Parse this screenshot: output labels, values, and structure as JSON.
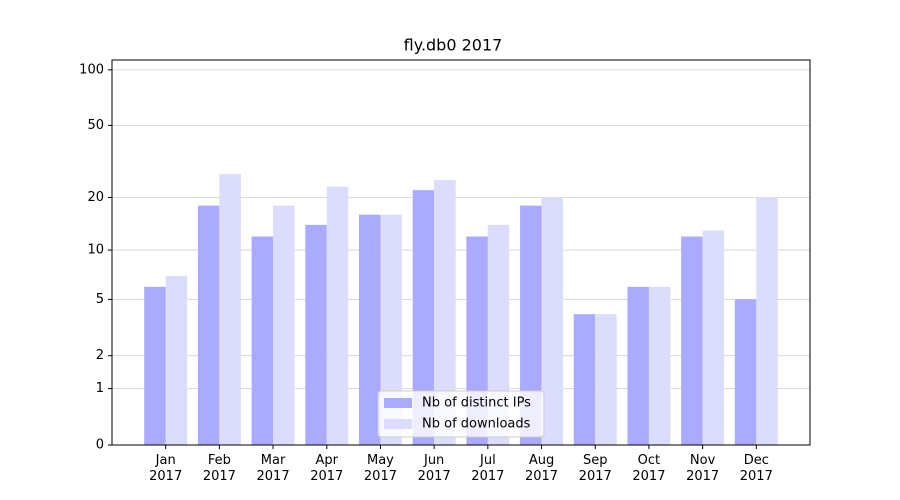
{
  "chart_data": {
    "type": "bar",
    "title": "fly.db0 2017",
    "categories": [
      "Jan\n2017",
      "Feb\n2017",
      "Mar\n2017",
      "Apr\n2017",
      "May\n2017",
      "Jun\n2017",
      "Jul\n2017",
      "Aug\n2017",
      "Sep\n2017",
      "Oct\n2017",
      "Nov\n2017",
      "Dec\n2017"
    ],
    "series": [
      {
        "name": "Nb of distinct IPs",
        "color": "#aaaaff",
        "values": [
          6,
          18,
          12,
          14,
          16,
          22,
          12,
          18,
          4,
          6,
          12,
          5
        ]
      },
      {
        "name": "Nb of downloads",
        "color": "#dcdcfc",
        "values": [
          7,
          27,
          18,
          23,
          16,
          25,
          14,
          20,
          4,
          6,
          13,
          20
        ]
      }
    ],
    "yscale": "log1p",
    "ylim": [
      0,
      113
    ],
    "yticks": [
      0,
      1,
      2,
      5,
      10,
      20,
      50,
      100
    ],
    "grid": true,
    "legend": "lower center"
  }
}
